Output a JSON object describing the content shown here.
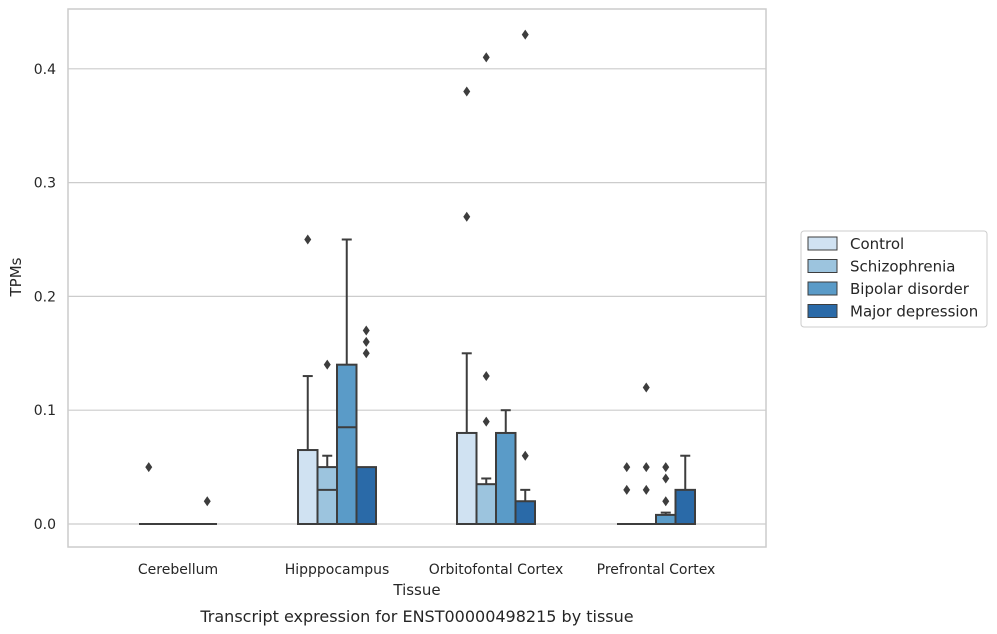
{
  "caption": "Transcript expression for ENST00000498215 by tissue",
  "chart_data": {
    "type": "box",
    "xlabel": "Tissue",
    "ylabel": "TPMs",
    "ylim": [
      -0.021,
      0.455
    ],
    "yticks": [
      0.0,
      0.1,
      0.2,
      0.3,
      0.4
    ],
    "ytick_labels": [
      "0.0",
      "0.1",
      "0.2",
      "0.3",
      "0.4"
    ],
    "grid": "horizontal",
    "legend_position": "right",
    "categories": [
      "Cerebellum",
      "Hipppocampus",
      "Orbitofontal Cortex",
      "Prefrontal Cortex"
    ],
    "series": [
      {
        "name": "Control",
        "color": "#d0e2f2",
        "boxes": [
          {
            "q1": 0.0,
            "median": 0.0,
            "q3": 0.0,
            "whisker_low": 0.0,
            "whisker_high": 0.0,
            "outliers": [
              0.05
            ]
          },
          {
            "q1": 0.0,
            "median": 0.0,
            "q3": 0.065,
            "whisker_low": 0.0,
            "whisker_high": 0.13,
            "outliers": [
              0.25
            ]
          },
          {
            "q1": 0.0,
            "median": 0.0,
            "q3": 0.08,
            "whisker_low": 0.0,
            "whisker_high": 0.15,
            "outliers": [
              0.27,
              0.38
            ]
          },
          {
            "q1": 0.0,
            "median": 0.0,
            "q3": 0.0,
            "whisker_low": 0.0,
            "whisker_high": 0.0,
            "outliers": [
              0.03,
              0.05
            ]
          }
        ]
      },
      {
        "name": "Schizophrenia",
        "color": "#9cc4de",
        "boxes": [
          {
            "q1": 0.0,
            "median": 0.0,
            "q3": 0.0,
            "whisker_low": 0.0,
            "whisker_high": 0.0,
            "outliers": []
          },
          {
            "q1": 0.0,
            "median": 0.03,
            "q3": 0.05,
            "whisker_low": 0.0,
            "whisker_high": 0.06,
            "outliers": [
              0.14
            ]
          },
          {
            "q1": 0.0,
            "median": 0.0,
            "q3": 0.035,
            "whisker_low": 0.0,
            "whisker_high": 0.04,
            "outliers": [
              0.09,
              0.13,
              0.41
            ]
          },
          {
            "q1": 0.0,
            "median": 0.0,
            "q3": 0.0,
            "whisker_low": 0.0,
            "whisker_high": 0.0,
            "outliers": [
              0.03,
              0.05,
              0.12
            ]
          }
        ]
      },
      {
        "name": "Bipolar disorder",
        "color": "#5a9bc8",
        "boxes": [
          {
            "q1": 0.0,
            "median": 0.0,
            "q3": 0.0,
            "whisker_low": 0.0,
            "whisker_high": 0.0,
            "outliers": []
          },
          {
            "q1": 0.0,
            "median": 0.085,
            "q3": 0.14,
            "whisker_low": 0.0,
            "whisker_high": 0.25,
            "outliers": []
          },
          {
            "q1": 0.0,
            "median": 0.0,
            "q3": 0.08,
            "whisker_low": 0.0,
            "whisker_high": 0.1,
            "outliers": []
          },
          {
            "q1": 0.0,
            "median": 0.0,
            "q3": 0.008,
            "whisker_low": 0.0,
            "whisker_high": 0.01,
            "outliers": [
              0.02,
              0.04,
              0.05
            ]
          }
        ]
      },
      {
        "name": "Major depression",
        "color": "#2a6aa8",
        "boxes": [
          {
            "q1": 0.0,
            "median": 0.0,
            "q3": 0.0,
            "whisker_low": 0.0,
            "whisker_high": 0.0,
            "outliers": [
              0.02
            ]
          },
          {
            "q1": 0.0,
            "median": 0.0,
            "q3": 0.05,
            "whisker_low": 0.0,
            "whisker_high": 0.05,
            "outliers": [
              0.15,
              0.16,
              0.17
            ]
          },
          {
            "q1": 0.0,
            "median": 0.0,
            "q3": 0.02,
            "whisker_low": 0.0,
            "whisker_high": 0.03,
            "outliers": [
              0.06,
              0.43
            ]
          },
          {
            "q1": 0.0,
            "median": 0.0,
            "q3": 0.03,
            "whisker_low": 0.0,
            "whisker_high": 0.06,
            "outliers": []
          }
        ]
      }
    ]
  }
}
